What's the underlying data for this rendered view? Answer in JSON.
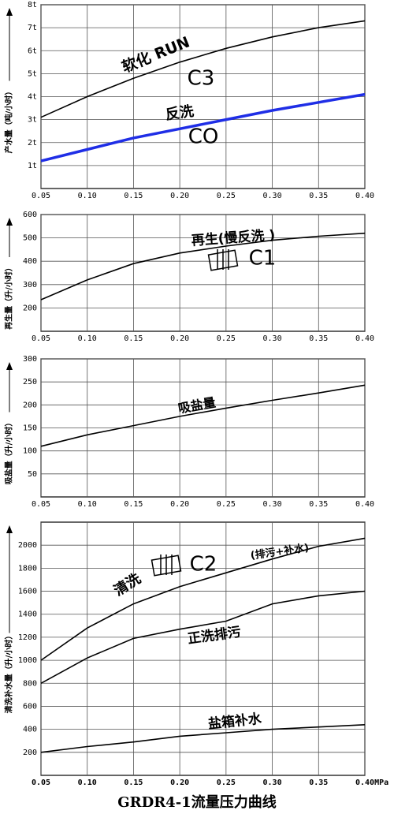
{
  "title": "GRDR4-1流量压力曲线",
  "chart_data": [
    {
      "type": "line",
      "ylabel": "产水量（吨/小时）",
      "x": [
        0.05,
        0.1,
        0.15,
        0.2,
        0.25,
        0.3,
        0.35,
        0.4
      ],
      "xlim": [
        0.05,
        0.4
      ],
      "xticks": [
        0.05,
        {
          "value": 0.1,
          "label": "0.10"
        },
        0.15,
        {
          "value": 0.2,
          "label": "0.20"
        },
        0.25,
        {
          "value": 0.3,
          "label": "0.30"
        },
        0.35,
        {
          "value": 0.4,
          "label": "0.40"
        }
      ],
      "ylim": [
        0,
        8
      ],
      "yticks": [
        {
          "value": 1,
          "label": "1t"
        },
        {
          "value": 2,
          "label": "2t"
        },
        {
          "value": 3,
          "label": "3t"
        },
        {
          "value": 4,
          "label": "4t"
        },
        {
          "value": 5,
          "label": "5t"
        },
        {
          "value": 6,
          "label": "6t"
        },
        {
          "value": 7,
          "label": "7t"
        },
        {
          "value": 8,
          "label": "8t"
        }
      ],
      "grid": true,
      "series": [
        {
          "name": "软化 RUN",
          "tags": [
            "C3"
          ],
          "color": "#000000",
          "values": [
            3.1,
            4.0,
            4.8,
            5.5,
            6.1,
            6.6,
            7.0,
            7.3
          ]
        },
        {
          "name": "反洗",
          "tags": [
            "CO"
          ],
          "color": "#1f2ee6",
          "values": [
            1.2,
            1.7,
            2.2,
            2.6,
            3.0,
            3.4,
            3.75,
            4.1
          ]
        }
      ]
    },
    {
      "type": "line",
      "ylabel": "再生量（升/小时）",
      "x": [
        0.05,
        0.1,
        0.15,
        0.2,
        0.25,
        0.3,
        0.35,
        0.4
      ],
      "xlim": [
        0.05,
        0.4
      ],
      "xticks": [
        0.05,
        {
          "value": 0.1,
          "label": "0.10"
        },
        0.15,
        {
          "value": 0.2,
          "label": "0.20"
        },
        0.25,
        {
          "value": 0.3,
          "label": "0.30"
        },
        0.35,
        {
          "value": 0.4,
          "label": "0.40"
        }
      ],
      "ylim": [
        100,
        600
      ],
      "yticks": [
        200,
        300,
        400,
        500,
        600
      ],
      "grid": true,
      "series": [
        {
          "name": "再生(慢反洗 )",
          "tags": [
            "C1"
          ],
          "color": "#000000",
          "values": [
            235,
            320,
            390,
            435,
            465,
            490,
            507,
            520
          ]
        }
      ]
    },
    {
      "type": "line",
      "ylabel": "吸盐量（升/小时）",
      "x": [
        0.05,
        0.1,
        0.15,
        0.2,
        0.25,
        0.3,
        0.35,
        0.4
      ],
      "xlim": [
        0.05,
        0.4
      ],
      "xticks": [
        0.05,
        {
          "value": 0.1,
          "label": "0.10"
        },
        0.15,
        {
          "value": 0.2,
          "label": "0.20"
        },
        0.25,
        {
          "value": 0.3,
          "label": "0.30"
        },
        0.35,
        {
          "value": 0.4,
          "label": "0.40"
        }
      ],
      "ylim": [
        0,
        300
      ],
      "yticks": [
        50,
        100,
        150,
        200,
        250,
        300
      ],
      "grid": true,
      "series": [
        {
          "name": "吸盐量",
          "tags": [],
          "color": "#000000",
          "values": [
            110,
            135,
            155,
            175,
            193,
            210,
            226,
            243
          ]
        }
      ]
    },
    {
      "type": "line",
      "ylabel": "清洗补水量（升/小时）",
      "x": [
        0.05,
        0.1,
        0.15,
        0.2,
        0.25,
        0.3,
        0.35,
        0.4
      ],
      "xlim": [
        0.05,
        0.4
      ],
      "xticks": [
        0.05,
        {
          "value": 0.1,
          "label": "0.10"
        },
        0.15,
        {
          "value": 0.2,
          "label": "0.20"
        },
        0.25,
        {
          "value": 0.3,
          "label": "0.30"
        },
        0.35,
        {
          "value": 0.4,
          "label": "0.40MPa"
        }
      ],
      "ylim": [
        0,
        2200
      ],
      "yticks": [
        200,
        400,
        600,
        800,
        1000,
        1200,
        1400,
        1600,
        1800,
        2000
      ],
      "grid": true,
      "series": [
        {
          "name": "清洗",
          "tags": [
            "C2",
            "(排污+补水)"
          ],
          "color": "#000000",
          "values": [
            1000,
            1280,
            1490,
            1640,
            1760,
            1880,
            1990,
            2060
          ]
        },
        {
          "name": "正洗排污",
          "tags": [],
          "color": "#000000",
          "values": [
            800,
            1020,
            1190,
            1270,
            1340,
            1490,
            1560,
            1600
          ]
        },
        {
          "name": "盐箱补水",
          "tags": [],
          "color": "#000000",
          "values": [
            200,
            250,
            290,
            340,
            370,
            400,
            420,
            440
          ]
        }
      ]
    }
  ]
}
